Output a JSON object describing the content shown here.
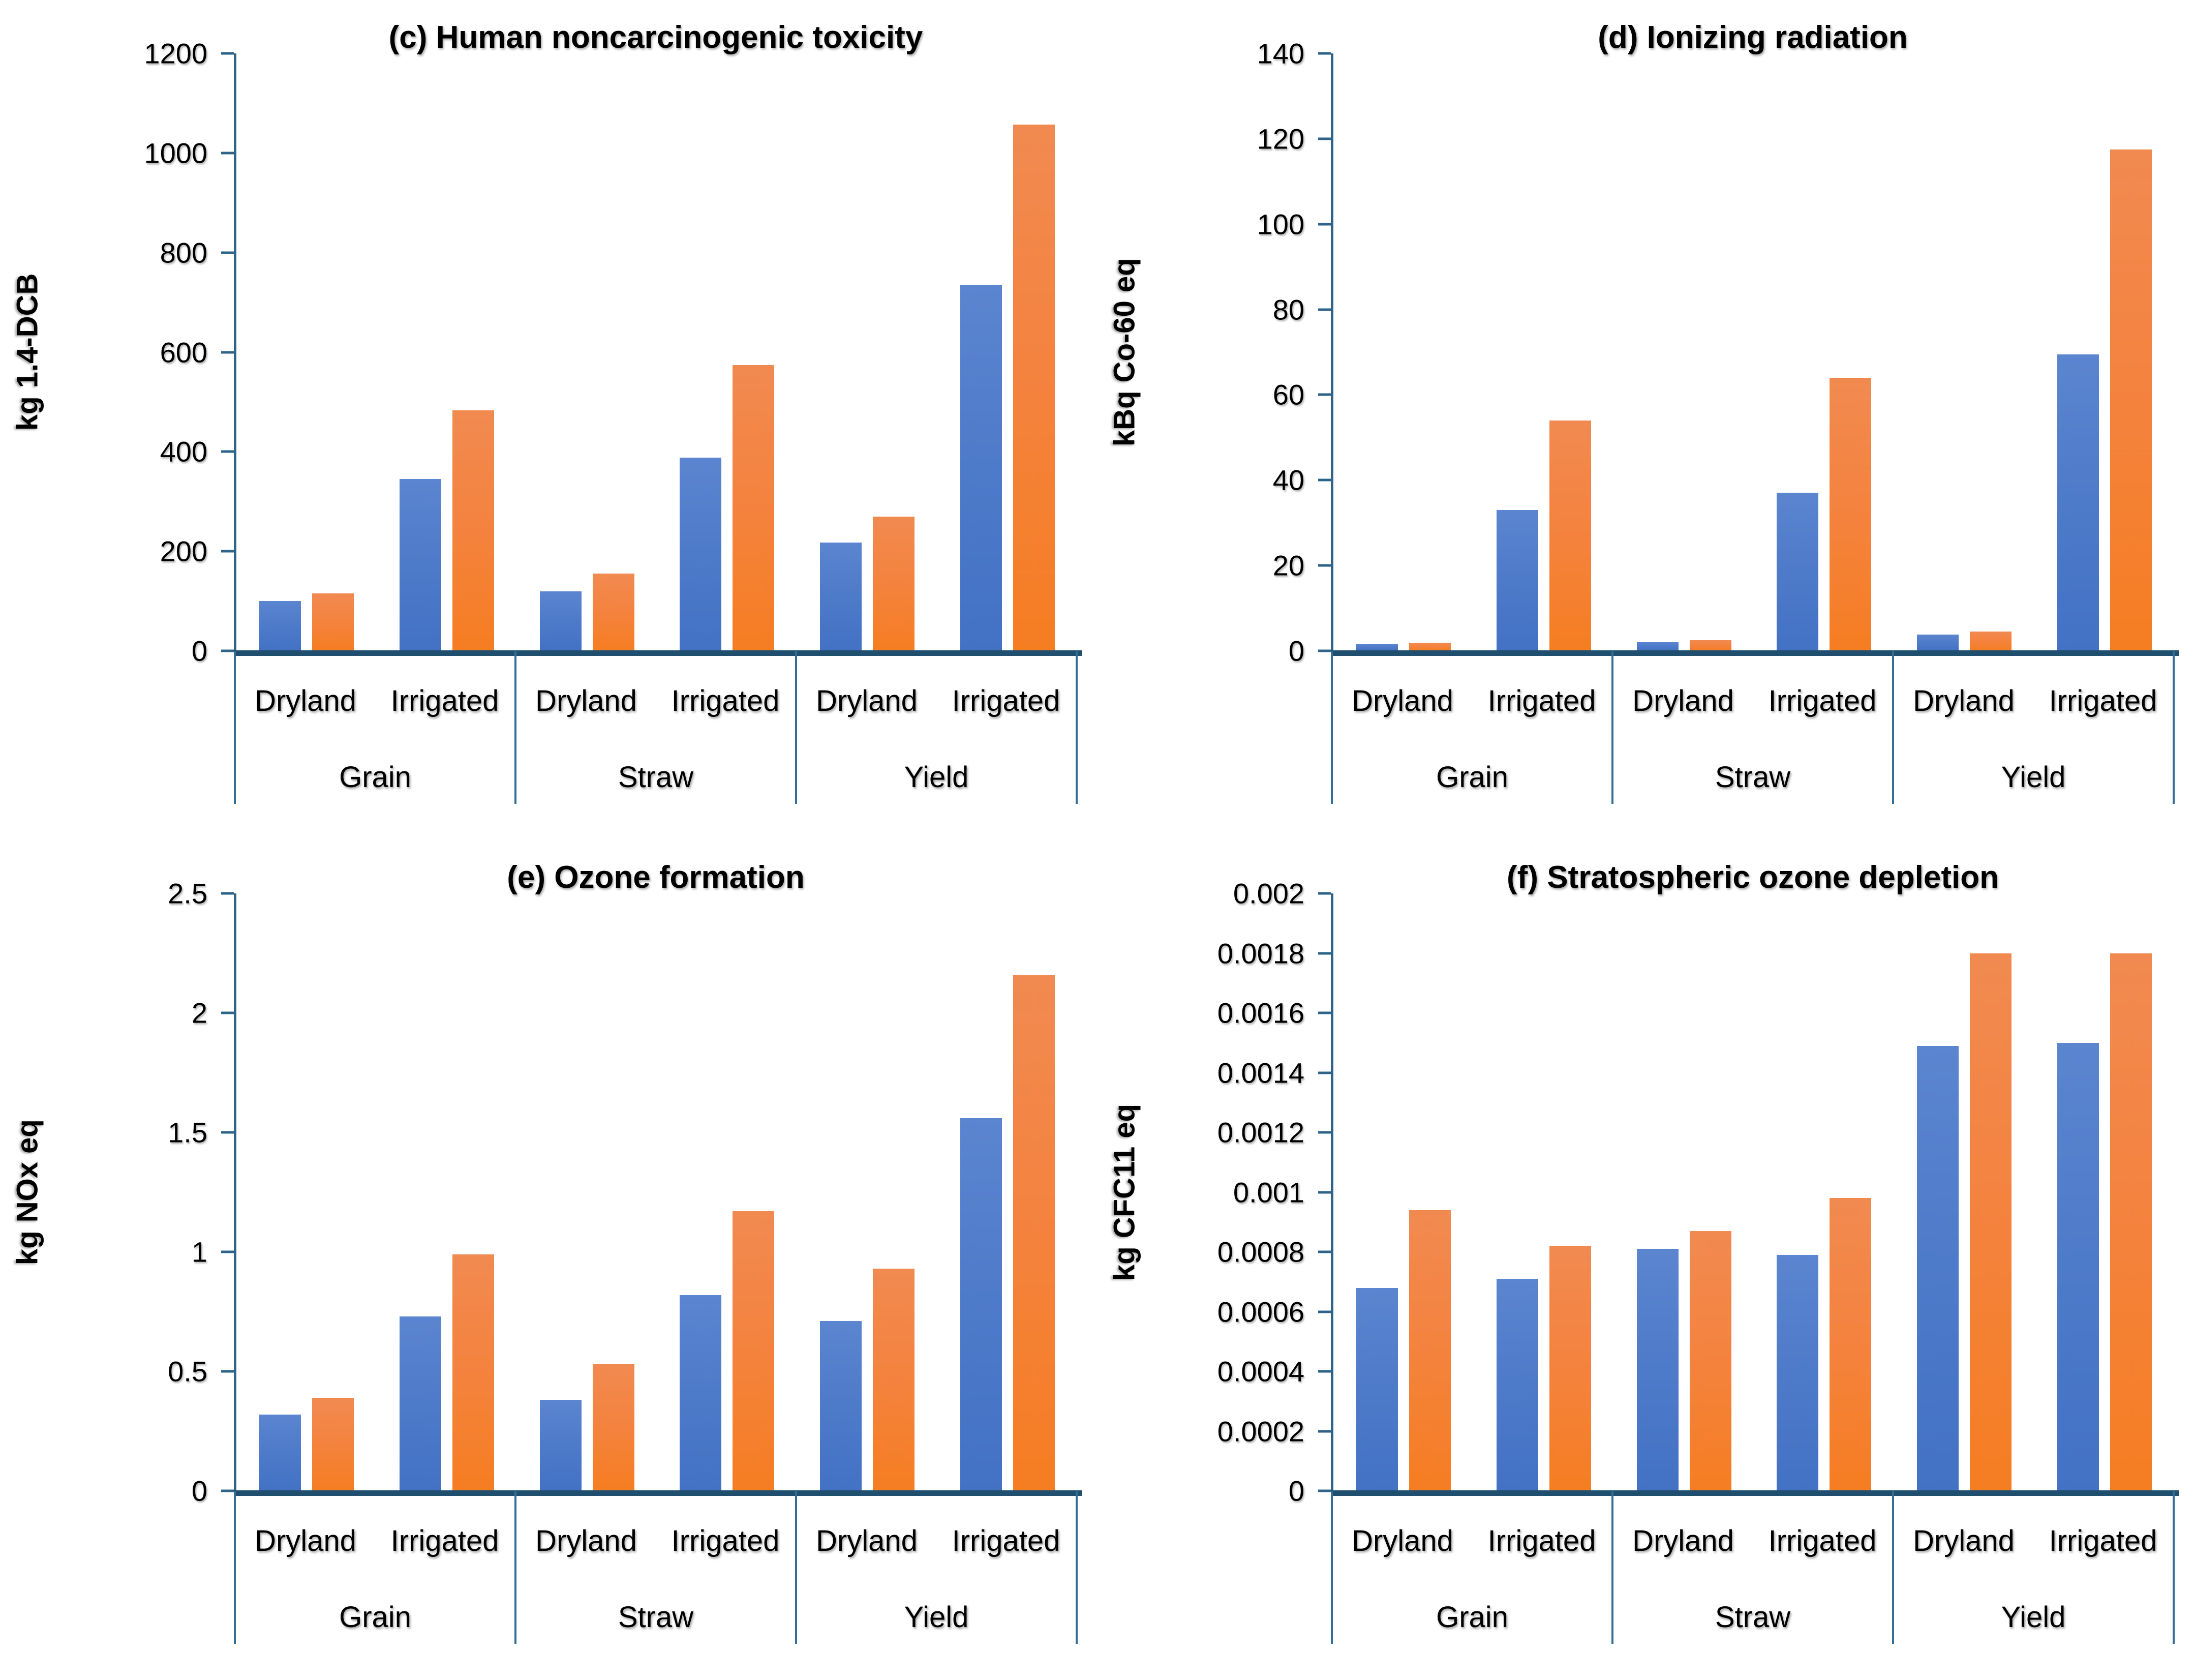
{
  "figure": {
    "layout": "2x2-grid",
    "legend": "none",
    "bar_colors": {
      "blue": "#4472c4",
      "orange": "#ed7d31"
    },
    "axis_color": "#2e6489",
    "baseline_color": "#1f4e6e"
  },
  "chart_data": [
    {
      "id": "c",
      "type": "bar",
      "title": "(c) Human noncarcinogenic toxicity",
      "ylabel": "kg 1.4-DCB",
      "ylim": [
        0,
        1200
      ],
      "tick_values": [
        0,
        200,
        400,
        600,
        800,
        1000,
        1200
      ],
      "tick_labels": [
        "0",
        "200",
        "400",
        "600",
        "800",
        "1000",
        "1200"
      ],
      "grid": "off",
      "categories": [
        "Grain",
        "Straw",
        "Yield"
      ],
      "subcategories": [
        "Dryland",
        "Irrigated"
      ],
      "series": [
        {
          "name": "blue",
          "color": "#4472c4",
          "values": [
            100,
            345,
            120,
            388,
            218,
            735
          ]
        },
        {
          "name": "orange",
          "color": "#ed7d31",
          "values": [
            115,
            483,
            155,
            574,
            270,
            1057
          ]
        }
      ],
      "value_order": [
        "Grain-Dryland",
        "Grain-Irrigated",
        "Straw-Dryland",
        "Straw-Irrigated",
        "Yield-Dryland",
        "Yield-Irrigated"
      ]
    },
    {
      "id": "d",
      "type": "bar",
      "title": "(d) Ionizing radiation",
      "ylabel": "kBq Co-60 eq",
      "ylim": [
        0,
        140
      ],
      "tick_values": [
        0,
        20,
        40,
        60,
        80,
        100,
        120,
        140
      ],
      "tick_labels": [
        "0",
        "20",
        "40",
        "60",
        "80",
        "100",
        "120",
        "140"
      ],
      "grid": "off",
      "categories": [
        "Grain",
        "Straw",
        "Yield"
      ],
      "subcategories": [
        "Dryland",
        "Irrigated"
      ],
      "series": [
        {
          "name": "blue",
          "color": "#4472c4",
          "values": [
            1.6,
            33,
            2.0,
            37,
            3.8,
            69.5
          ]
        },
        {
          "name": "orange",
          "color": "#ed7d31",
          "values": [
            1.9,
            54,
            2.5,
            64,
            4.5,
            117.5
          ]
        }
      ],
      "value_order": [
        "Grain-Dryland",
        "Grain-Irrigated",
        "Straw-Dryland",
        "Straw-Irrigated",
        "Yield-Dryland",
        "Yield-Irrigated"
      ]
    },
    {
      "id": "e",
      "type": "bar",
      "title": "(e) Ozone formation",
      "ylabel": "kg NOx eq",
      "ylim": [
        0,
        2.5
      ],
      "tick_values": [
        0,
        0.5,
        1,
        1.5,
        2,
        2.5
      ],
      "tick_labels": [
        "0",
        "0.5",
        "1",
        "1.5",
        "2",
        "2.5"
      ],
      "grid": "off",
      "categories": [
        "Grain",
        "Straw",
        "Yield"
      ],
      "subcategories": [
        "Dryland",
        "Irrigated"
      ],
      "series": [
        {
          "name": "blue",
          "color": "#4472c4",
          "values": [
            0.32,
            0.73,
            0.38,
            0.82,
            0.71,
            1.56
          ]
        },
        {
          "name": "orange",
          "color": "#ed7d31",
          "values": [
            0.39,
            0.99,
            0.53,
            1.17,
            0.93,
            2.16
          ]
        }
      ],
      "value_order": [
        "Grain-Dryland",
        "Grain-Irrigated",
        "Straw-Dryland",
        "Straw-Irrigated",
        "Yield-Dryland",
        "Yield-Irrigated"
      ]
    },
    {
      "id": "f",
      "type": "bar",
      "title": "(f) Stratospheric ozone depletion",
      "ylabel": "kg CFC11 eq",
      "ylim": [
        0,
        0.002
      ],
      "tick_values": [
        0,
        0.0002,
        0.0004,
        0.0006,
        0.0008,
        0.001,
        0.0012,
        0.0014,
        0.0016,
        0.0018,
        0.002
      ],
      "tick_labels": [
        "0",
        "0.0002",
        "0.0004",
        "0.0006",
        "0.0008",
        "0.001",
        "0.0012",
        "0.0014",
        "0.0016",
        "0.0018",
        "0.002"
      ],
      "grid": "off",
      "categories": [
        "Grain",
        "Straw",
        "Yield"
      ],
      "subcategories": [
        "Dryland",
        "Irrigated"
      ],
      "series": [
        {
          "name": "blue",
          "color": "#4472c4",
          "values": [
            0.00068,
            0.00071,
            0.00081,
            0.00079,
            0.00149,
            0.0015
          ]
        },
        {
          "name": "orange",
          "color": "#ed7d31",
          "values": [
            0.00094,
            0.00082,
            0.00087,
            0.00098,
            0.0018,
            0.0018
          ]
        }
      ],
      "value_order": [
        "Grain-Dryland",
        "Grain-Irrigated",
        "Straw-Dryland",
        "Straw-Irrigated",
        "Yield-Dryland",
        "Yield-Irrigated"
      ]
    }
  ]
}
